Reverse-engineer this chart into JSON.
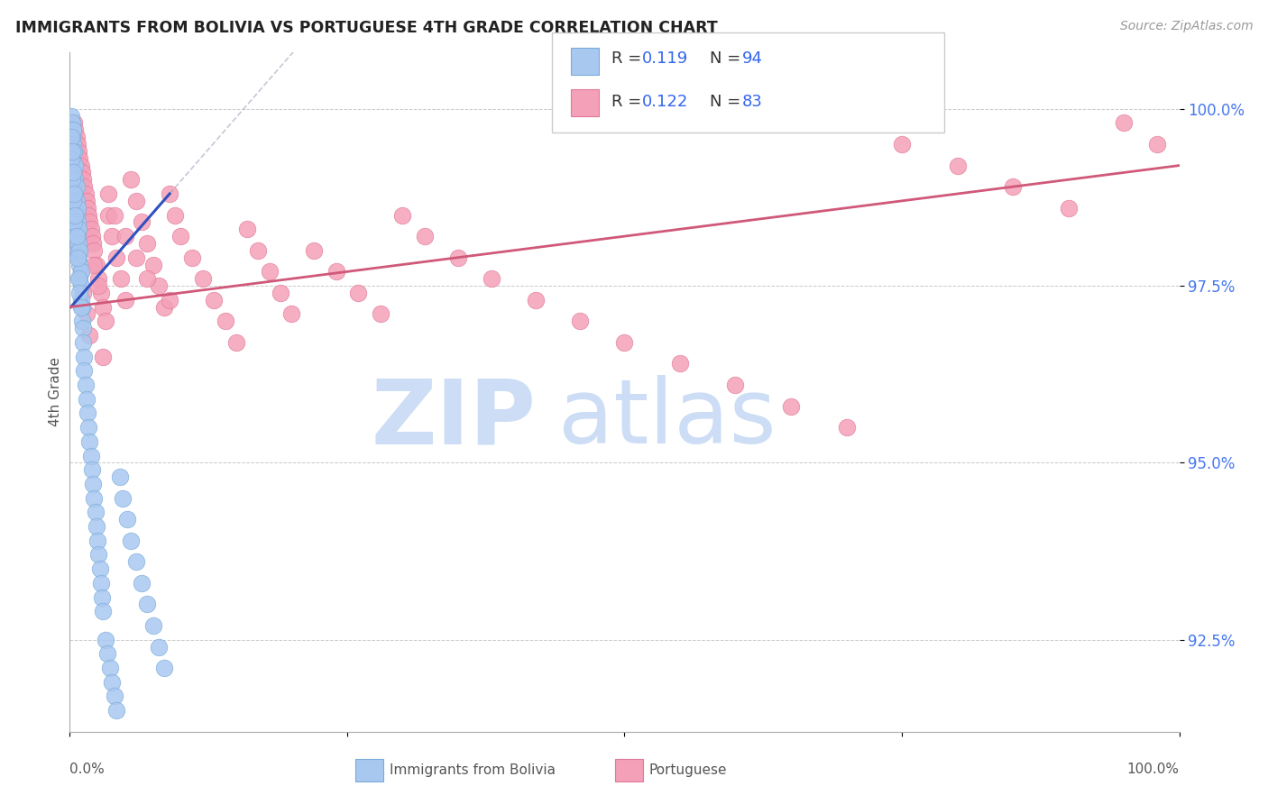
{
  "title": "IMMIGRANTS FROM BOLIVIA VS PORTUGUESE 4TH GRADE CORRELATION CHART",
  "source": "Source: ZipAtlas.com",
  "ylabel": "4th Grade",
  "x_min": 0.0,
  "x_max": 1.0,
  "y_min": 91.2,
  "y_max": 100.8,
  "ytick_labels": [
    "92.5%",
    "95.0%",
    "97.5%",
    "100.0%"
  ],
  "ytick_values": [
    92.5,
    95.0,
    97.5,
    100.0
  ],
  "color_bolivia": "#a8c8f0",
  "color_portuguese": "#f4a0b8",
  "scatter_edge_bolivia": "#7aaad8",
  "scatter_edge_portuguese": "#e07898",
  "trend_color_bolivia": "#3050c0",
  "trend_color_portuguese": "#d05878",
  "watermark_zip": "ZIP",
  "watermark_atlas": "atlas",
  "watermark_color": "#ccddf5",
  "bolivia_x": [
    0.001,
    0.001,
    0.001,
    0.001,
    0.002,
    0.002,
    0.002,
    0.002,
    0.002,
    0.002,
    0.003,
    0.003,
    0.003,
    0.003,
    0.003,
    0.004,
    0.004,
    0.004,
    0.004,
    0.005,
    0.005,
    0.005,
    0.005,
    0.005,
    0.006,
    0.006,
    0.006,
    0.006,
    0.007,
    0.007,
    0.007,
    0.007,
    0.008,
    0.008,
    0.008,
    0.009,
    0.009,
    0.009,
    0.01,
    0.01,
    0.01,
    0.011,
    0.011,
    0.012,
    0.012,
    0.013,
    0.013,
    0.014,
    0.015,
    0.016,
    0.017,
    0.018,
    0.019,
    0.02,
    0.021,
    0.022,
    0.023,
    0.024,
    0.025,
    0.026,
    0.027,
    0.028,
    0.029,
    0.03,
    0.032,
    0.034,
    0.036,
    0.038,
    0.04,
    0.042,
    0.045,
    0.048,
    0.052,
    0.055,
    0.06,
    0.065,
    0.07,
    0.075,
    0.08,
    0.085,
    0.001,
    0.001,
    0.002,
    0.002,
    0.003,
    0.003,
    0.004,
    0.004,
    0.005,
    0.006,
    0.007,
    0.008,
    0.009,
    0.01
  ],
  "bolivia_y": [
    99.9,
    99.7,
    99.6,
    99.5,
    99.8,
    99.7,
    99.6,
    99.5,
    99.4,
    99.3,
    99.7,
    99.5,
    99.4,
    99.2,
    99.1,
    99.4,
    99.2,
    99.0,
    98.8,
    99.2,
    99.0,
    98.8,
    98.6,
    98.4,
    98.9,
    98.7,
    98.5,
    98.3,
    98.6,
    98.4,
    98.2,
    98.0,
    98.3,
    98.1,
    97.9,
    98.0,
    97.8,
    97.6,
    97.7,
    97.5,
    97.3,
    97.2,
    97.0,
    96.9,
    96.7,
    96.5,
    96.3,
    96.1,
    95.9,
    95.7,
    95.5,
    95.3,
    95.1,
    94.9,
    94.7,
    94.5,
    94.3,
    94.1,
    93.9,
    93.7,
    93.5,
    93.3,
    93.1,
    92.9,
    92.5,
    92.3,
    92.1,
    91.9,
    91.7,
    91.5,
    94.8,
    94.5,
    94.2,
    93.9,
    93.6,
    93.3,
    93.0,
    92.7,
    92.4,
    92.1,
    99.6,
    99.3,
    99.4,
    99.0,
    99.1,
    98.7,
    98.8,
    98.4,
    98.5,
    98.2,
    97.9,
    97.6,
    97.4,
    97.2
  ],
  "portuguese_x": [
    0.004,
    0.005,
    0.006,
    0.007,
    0.008,
    0.009,
    0.01,
    0.011,
    0.012,
    0.013,
    0.014,
    0.015,
    0.016,
    0.017,
    0.018,
    0.019,
    0.02,
    0.021,
    0.022,
    0.024,
    0.026,
    0.028,
    0.03,
    0.032,
    0.035,
    0.038,
    0.042,
    0.046,
    0.05,
    0.055,
    0.06,
    0.065,
    0.07,
    0.075,
    0.08,
    0.085,
    0.09,
    0.095,
    0.1,
    0.11,
    0.12,
    0.13,
    0.14,
    0.15,
    0.16,
    0.17,
    0.18,
    0.19,
    0.2,
    0.22,
    0.24,
    0.26,
    0.28,
    0.3,
    0.32,
    0.35,
    0.38,
    0.42,
    0.46,
    0.5,
    0.55,
    0.6,
    0.65,
    0.7,
    0.75,
    0.8,
    0.85,
    0.9,
    0.95,
    0.98,
    0.008,
    0.01,
    0.012,
    0.015,
    0.018,
    0.022,
    0.026,
    0.03,
    0.035,
    0.04,
    0.05,
    0.06,
    0.07,
    0.09
  ],
  "portuguese_y": [
    99.8,
    99.7,
    99.6,
    99.5,
    99.4,
    99.3,
    99.2,
    99.1,
    99.0,
    98.9,
    98.8,
    98.7,
    98.6,
    98.5,
    98.4,
    98.3,
    98.2,
    98.1,
    98.0,
    97.8,
    97.6,
    97.4,
    97.2,
    97.0,
    98.5,
    98.2,
    97.9,
    97.6,
    97.3,
    99.0,
    98.7,
    98.4,
    98.1,
    97.8,
    97.5,
    97.2,
    98.8,
    98.5,
    98.2,
    97.9,
    97.6,
    97.3,
    97.0,
    96.7,
    98.3,
    98.0,
    97.7,
    97.4,
    97.1,
    98.0,
    97.7,
    97.4,
    97.1,
    98.5,
    98.2,
    97.9,
    97.6,
    97.3,
    97.0,
    96.7,
    96.4,
    96.1,
    95.8,
    95.5,
    99.5,
    99.2,
    98.9,
    98.6,
    99.8,
    99.5,
    98.0,
    97.7,
    97.4,
    97.1,
    96.8,
    97.8,
    97.5,
    96.5,
    98.8,
    98.5,
    98.2,
    97.9,
    97.6,
    97.3
  ],
  "bolivia_trend_x": [
    0.001,
    0.09
  ],
  "bolivia_trend_y": [
    97.2,
    98.8
  ],
  "portuguese_trend_x": [
    0.0,
    1.0
  ],
  "portuguese_trend_y": [
    97.2,
    99.2
  ]
}
